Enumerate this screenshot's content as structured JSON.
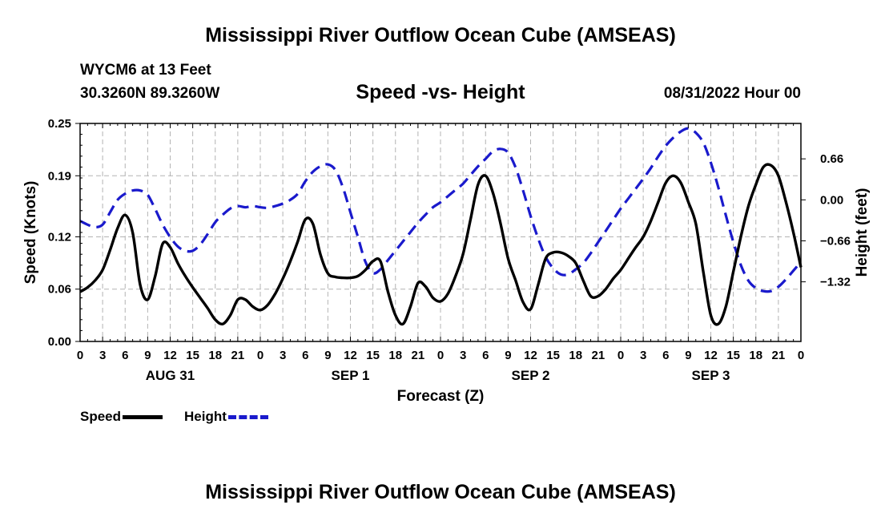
{
  "header": {
    "title": "Mississippi River Outflow Ocean Cube (AMSEAS)",
    "station": "WYCM6 at 13 Feet",
    "coords": "30.3260N  89.3260W",
    "subtitle": "Speed -vs- Height",
    "datetime": "08/31/2022 Hour 00"
  },
  "footer": {
    "title": "Mississippi River Outflow Ocean Cube (AMSEAS)"
  },
  "legend": {
    "speed_label": "Speed",
    "height_label": "Height"
  },
  "colors": {
    "speed": "#000000",
    "height": "#1a1acc",
    "grid": "#b4b4b4"
  },
  "chart_data": {
    "type": "line",
    "title": "Speed -vs- Height",
    "xlabel": "Forecast (Z)",
    "ylabel": "Speed (Knots)",
    "y2label": "Height (feet)",
    "xlim": [
      0,
      96
    ],
    "ylim": [
      0,
      0.25
    ],
    "y2lim": [
      -2.28,
      1.23
    ],
    "x_ticks": [
      0,
      3,
      6,
      9,
      12,
      15,
      18,
      21,
      24,
      27,
      30,
      33,
      36,
      39,
      42,
      45,
      48,
      51,
      54,
      57,
      60,
      63,
      66,
      69,
      72,
      75,
      78,
      81,
      84,
      87,
      90,
      93,
      96
    ],
    "x_tick_labels": [
      "0",
      "3",
      "6",
      "9",
      "12",
      "15",
      "18",
      "21",
      "0",
      "3",
      "6",
      "9",
      "12",
      "15",
      "18",
      "21",
      "0",
      "3",
      "6",
      "9",
      "12",
      "15",
      "18",
      "21",
      "0",
      "3",
      "6",
      "9",
      "12",
      "15",
      "18",
      "21",
      "0"
    ],
    "y_ticks": [
      0,
      0.06,
      0.12,
      0.19,
      0.25
    ],
    "y_tick_labels": [
      "0.00",
      "0.06",
      "0.12",
      "0.19",
      "0.25"
    ],
    "y2_ticks": [
      0.66,
      0,
      -0.66,
      -1.32
    ],
    "y2_tick_labels": [
      "0.66",
      "0.00",
      "−0.66",
      "−1.32"
    ],
    "day_labels": [
      {
        "x": 12,
        "label": "AUG 31"
      },
      {
        "x": 36,
        "label": "SEP 1"
      },
      {
        "x": 60,
        "label": "SEP 2"
      },
      {
        "x": 84,
        "label": "SEP 3"
      }
    ],
    "grid": true,
    "series": [
      {
        "name": "Speed",
        "axis": "left",
        "x": [
          0,
          1,
          2,
          3,
          4,
          5,
          6,
          7,
          8,
          9,
          10,
          11,
          12,
          13,
          14,
          15,
          16,
          17,
          18,
          19,
          20,
          21,
          22,
          23,
          24,
          25,
          26,
          27,
          28,
          29,
          30,
          31,
          32,
          33,
          34,
          35,
          36,
          37,
          38,
          39,
          40,
          41,
          42,
          43,
          44,
          45,
          46,
          47,
          48,
          49,
          50,
          51,
          52,
          53,
          54,
          55,
          56,
          57,
          58,
          59,
          60,
          61,
          62,
          63,
          64,
          65,
          66,
          67,
          68,
          69,
          70,
          71,
          72,
          73,
          74,
          75,
          76,
          77,
          78,
          79,
          80,
          81,
          82,
          83,
          84,
          85,
          86,
          87,
          88,
          89,
          90,
          91,
          92,
          93,
          94,
          95,
          96
        ],
        "values": [
          0.057,
          0.062,
          0.07,
          0.082,
          0.105,
          0.13,
          0.145,
          0.125,
          0.065,
          0.048,
          0.075,
          0.112,
          0.108,
          0.09,
          0.075,
          0.062,
          0.05,
          0.038,
          0.025,
          0.02,
          0.03,
          0.048,
          0.048,
          0.04,
          0.036,
          0.042,
          0.055,
          0.072,
          0.092,
          0.115,
          0.14,
          0.135,
          0.1,
          0.078,
          0.074,
          0.073,
          0.073,
          0.075,
          0.082,
          0.092,
          0.092,
          0.057,
          0.03,
          0.02,
          0.04,
          0.067,
          0.063,
          0.05,
          0.046,
          0.055,
          0.075,
          0.1,
          0.14,
          0.18,
          0.19,
          0.17,
          0.135,
          0.095,
          0.07,
          0.045,
          0.037,
          0.065,
          0.095,
          0.102,
          0.102,
          0.098,
          0.09,
          0.07,
          0.052,
          0.052,
          0.06,
          0.072,
          0.082,
          0.095,
          0.108,
          0.12,
          0.138,
          0.16,
          0.182,
          0.19,
          0.182,
          0.16,
          0.135,
          0.08,
          0.03,
          0.02,
          0.04,
          0.08,
          0.12,
          0.155,
          0.18,
          0.2,
          0.202,
          0.19,
          0.16,
          0.125,
          0.085
        ]
      },
      {
        "name": "Height",
        "axis": "right",
        "x": [
          0,
          1,
          2,
          3,
          4,
          5,
          6,
          7,
          8,
          9,
          10,
          11,
          12,
          13,
          14,
          15,
          16,
          17,
          18,
          19,
          20,
          21,
          22,
          23,
          24,
          25,
          26,
          27,
          28,
          29,
          30,
          31,
          32,
          33,
          34,
          35,
          36,
          37,
          38,
          39,
          40,
          41,
          42,
          43,
          44,
          45,
          46,
          47,
          48,
          49,
          50,
          51,
          52,
          53,
          54,
          55,
          56,
          57,
          58,
          59,
          60,
          61,
          62,
          63,
          64,
          65,
          66,
          67,
          68,
          69,
          70,
          71,
          72,
          73,
          74,
          75,
          76,
          77,
          78,
          79,
          80,
          81,
          82,
          83,
          84,
          85,
          86,
          87,
          88,
          89,
          90,
          91,
          92,
          93,
          94,
          95,
          96
        ],
        "values": [
          -0.34,
          -0.4,
          -0.44,
          -0.4,
          -0.2,
          0.0,
          0.1,
          0.15,
          0.15,
          0.08,
          -0.15,
          -0.4,
          -0.6,
          -0.75,
          -0.82,
          -0.82,
          -0.72,
          -0.55,
          -0.36,
          -0.24,
          -0.14,
          -0.1,
          -0.12,
          -0.1,
          -0.12,
          -0.13,
          -0.1,
          -0.06,
          0.0,
          0.1,
          0.3,
          0.45,
          0.54,
          0.57,
          0.48,
          0.2,
          -0.2,
          -0.6,
          -1.0,
          -1.18,
          -1.12,
          -0.97,
          -0.82,
          -0.67,
          -0.52,
          -0.37,
          -0.24,
          -0.12,
          -0.04,
          0.06,
          0.16,
          0.26,
          0.4,
          0.54,
          0.66,
          0.78,
          0.82,
          0.76,
          0.52,
          0.15,
          -0.26,
          -0.62,
          -0.92,
          -1.1,
          -1.2,
          -1.2,
          -1.12,
          -1.02,
          -0.86,
          -0.68,
          -0.5,
          -0.32,
          -0.14,
          0.02,
          0.18,
          0.34,
          0.51,
          0.7,
          0.87,
          1.0,
          1.1,
          1.15,
          1.08,
          0.92,
          0.6,
          0.2,
          -0.25,
          -0.68,
          -1.05,
          -1.3,
          -1.42,
          -1.47,
          -1.47,
          -1.4,
          -1.28,
          -1.14,
          -1.0
        ]
      }
    ]
  }
}
